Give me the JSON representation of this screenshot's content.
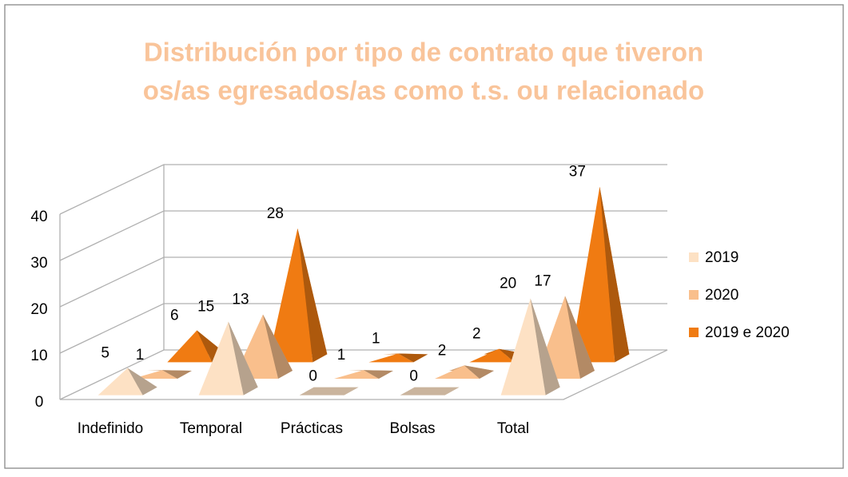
{
  "chart_data": {
    "type": "pyramid3d",
    "title": [
      "Distribución por tipo de contrato que tiveron",
      "os/as egresados/as como t.s. ou relacionado"
    ],
    "categories": [
      "Indefinido",
      "Temporal",
      "Prácticas",
      "Bolsas",
      "Total"
    ],
    "series": [
      {
        "name": "2019",
        "color": "#fde1c4",
        "values": [
          5,
          15,
          0,
          0,
          20
        ]
      },
      {
        "name": "2020",
        "color": "#f9bf8c",
        "values": [
          1,
          13,
          1,
          2,
          17
        ]
      },
      {
        "name": "2019 e 2020",
        "color": "#f07b12",
        "values": [
          6,
          28,
          1,
          2,
          37
        ]
      }
    ],
    "ylim": [
      0,
      40
    ],
    "yticks": [
      0,
      10,
      20,
      30,
      40
    ],
    "grid": true,
    "legend": "right"
  }
}
